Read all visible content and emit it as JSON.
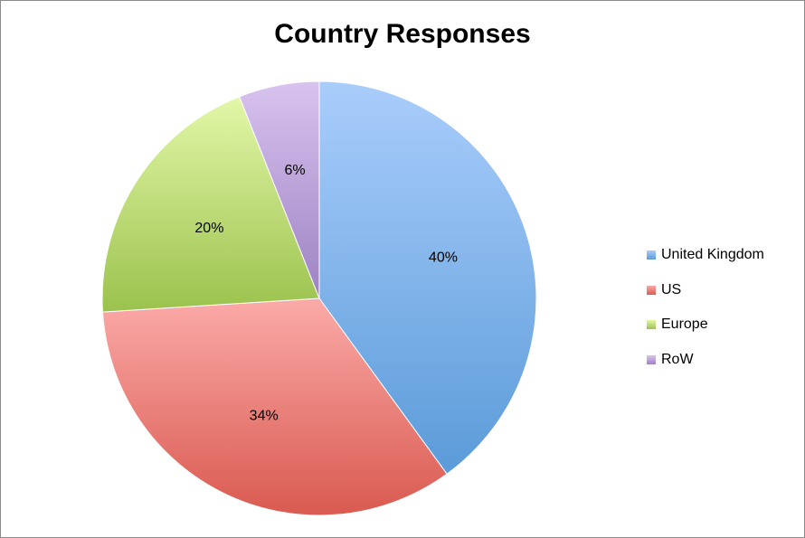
{
  "chart_data": {
    "type": "pie",
    "title": "Country Responses",
    "categories": [
      "United Kingdom",
      "US",
      "Europe",
      "RoW"
    ],
    "values": [
      40,
      34,
      20,
      6
    ],
    "value_labels": [
      "40%",
      "34%",
      "20%",
      "6%"
    ],
    "colors": [
      [
        "#a9cdfb",
        "#5b9bd9"
      ],
      [
        "#fbaaa8",
        "#d95a50"
      ],
      [
        "#e3f7a8",
        "#9bc24d"
      ],
      [
        "#d8c3ef",
        "#9d82c2"
      ]
    ],
    "legend_position": "right",
    "start_angle": "top",
    "direction": "clockwise"
  }
}
